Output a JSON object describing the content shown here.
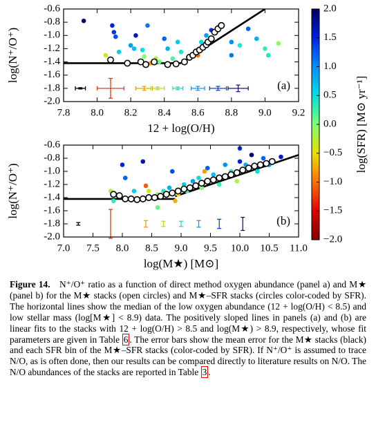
{
  "chart_data": [
    {
      "type": "scatter",
      "panel_label": "(a)",
      "x_label": "12 + log(O/H)",
      "y_label": "log(N⁺/O⁺)",
      "xlim": [
        7.8,
        9.2
      ],
      "xticks": [
        7.8,
        {
          "value": 8,
          "label": "8.0"
        },
        8.2,
        8.4,
        8.6,
        8.8,
        {
          "value": 9,
          "label": "9.0"
        },
        9.2
      ],
      "ylim": [
        -2,
        -0.6
      ],
      "yticks": [
        -0.6,
        -0.8,
        {
          "value": -1,
          "label": "-1.0"
        },
        -1.2,
        -1.4,
        -1.6,
        -1.8,
        {
          "value": -2,
          "label": "-2.0"
        }
      ],
      "stacks": {
        "x": [
          8.08,
          8.18,
          8.26,
          8.29,
          8.34,
          8.42,
          8.47,
          8.52,
          8.55,
          8.57,
          8.59,
          8.61,
          8.63,
          8.65,
          8.66,
          8.68,
          8.7,
          8.72,
          8.74
        ],
        "y": [
          -1.37,
          -1.42,
          -1.4,
          -1.44,
          -1.4,
          -1.44,
          -1.43,
          -1.4,
          -1.33,
          -1.3,
          -1.25,
          -1.22,
          -1.18,
          -1.14,
          -1.1,
          -1.05,
          -0.95,
          -0.9,
          -0.85
        ]
      },
      "sfr_stacks": {
        "x": [
          7.92,
          8.05,
          8.09,
          8.1,
          8.11,
          8.13,
          8.2,
          8.22,
          8.23,
          8.27,
          8.3,
          8.32,
          8.35,
          8.37,
          8.4,
          8.42,
          8.45,
          8.48,
          8.5,
          8.55,
          8.58,
          8.6,
          8.62,
          8.65,
          8.68,
          8.72,
          8.8,
          8.85,
          8.9,
          8.95,
          9.0,
          9.02,
          9.08,
          8.28,
          8.8
        ],
        "y": [
          -0.78,
          -1.3,
          -0.85,
          -0.95,
          -1.02,
          -1.25,
          -1.15,
          -1.2,
          -1.0,
          -1.22,
          -0.85,
          -1.42,
          -1.35,
          -1.4,
          -1.05,
          -1.2,
          -1.35,
          -1.1,
          -1.25,
          -1.35,
          -1.28,
          -1.3,
          -1.1,
          -1.0,
          -0.92,
          -0.88,
          -1.1,
          -1.15,
          -0.9,
          -1.05,
          -1.2,
          -1.3,
          -1.12,
          -1.32,
          -1.3
        ],
        "c": [
          1.9,
          -0.3,
          1.5,
          1.4,
          1.3,
          0.6,
          0.9,
          0.7,
          1.6,
          0.5,
          1.1,
          -0.8,
          -0.3,
          0.1,
          1.2,
          0.8,
          0.2,
          0.6,
          0.4,
          -0.5,
          0.3,
          -1.0,
          0.5,
          0.9,
          1.4,
          1.8,
          1.0,
          0.4,
          1.2,
          0.8,
          0.3,
          0.4,
          -0.1,
          0.0,
          1.1
        ]
      },
      "median_line": {
        "x": [
          7.8,
          8.5
        ],
        "y": [
          -1.42,
          -1.42
        ]
      },
      "fit_line": {
        "x": [
          8.5,
          9.0
        ],
        "y": [
          -1.42,
          -0.6
        ]
      },
      "error_bars": [
        {
          "x": 7.9,
          "y": -1.8,
          "xerr": 0.03,
          "yerr": 0.01,
          "color": "#000000"
        },
        {
          "x": 8.08,
          "y": -1.8,
          "xerr": 0.08,
          "yerr": 0.15,
          "color": "#e03a10"
        },
        {
          "x": 8.28,
          "y": -1.8,
          "xerr": 0.05,
          "yerr": 0.03,
          "color": "#f0a000"
        },
        {
          "x": 8.36,
          "y": -1.8,
          "xerr": 0.04,
          "yerr": 0.02,
          "color": "#b0e020"
        },
        {
          "x": 8.48,
          "y": -1.8,
          "xerr": 0.03,
          "yerr": 0.02,
          "color": "#30d8c0"
        },
        {
          "x": 8.6,
          "y": -1.8,
          "xerr": 0.04,
          "yerr": 0.03,
          "color": "#1898e8"
        },
        {
          "x": 8.72,
          "y": -1.8,
          "xerr": 0.05,
          "yerr": 0.03,
          "color": "#1040d0"
        },
        {
          "x": 8.84,
          "y": -1.8,
          "xerr": 0.06,
          "yerr": 0.05,
          "color": "#101878"
        }
      ]
    },
    {
      "type": "scatter",
      "panel_label": "(b)",
      "x_label": "log(M★) [M⊙]",
      "y_label": "log(N⁺/O⁺)",
      "xlim": [
        7,
        11
      ],
      "xticks": [
        {
          "value": 7,
          "label": "7.0"
        },
        7.5,
        {
          "value": 8,
          "label": "8.0"
        },
        8.5,
        {
          "value": 9,
          "label": "9.0"
        },
        9.5,
        {
          "value": 10,
          "label": "10.0"
        },
        10.5,
        {
          "value": 11,
          "label": "11.0"
        }
      ],
      "ylim": [
        -2,
        -0.6
      ],
      "yticks": [
        -0.6,
        -0.8,
        {
          "value": -1,
          "label": "-1.0"
        },
        -1.2,
        -1.4,
        -1.6,
        -1.8,
        {
          "value": -2,
          "label": "-2.0"
        }
      ],
      "stacks": {
        "x": [
          7.85,
          7.95,
          8.05,
          8.15,
          8.25,
          8.35,
          8.45,
          8.55,
          8.65,
          8.75,
          8.85,
          8.95,
          9.05,
          9.15,
          9.25,
          9.35,
          9.45,
          9.55,
          9.65,
          9.75,
          9.85,
          9.95,
          10.05,
          10.15,
          10.25,
          10.35,
          10.45,
          10.55
        ],
        "y": [
          -1.35,
          -1.37,
          -1.42,
          -1.42,
          -1.43,
          -1.42,
          -1.4,
          -1.4,
          -1.38,
          -1.35,
          -1.33,
          -1.3,
          -1.27,
          -1.25,
          -1.22,
          -1.18,
          -1.15,
          -1.13,
          -1.1,
          -1.08,
          -1.05,
          -1.02,
          -0.98,
          -0.95,
          -0.92,
          -0.9,
          -0.88,
          -0.85
        ]
      },
      "sfr_stacks": {
        "x": [
          7.8,
          7.85,
          8.0,
          8.05,
          8.2,
          8.35,
          8.4,
          8.45,
          8.5,
          8.6,
          8.7,
          8.8,
          8.85,
          8.95,
          9.05,
          9.1,
          9.2,
          9.3,
          9.35,
          9.45,
          9.55,
          9.65,
          9.75,
          9.85,
          9.95,
          10.0,
          10.1,
          10.2,
          10.3,
          10.4,
          10.5,
          10.7,
          10.0,
          9.4,
          8.6,
          8.9
        ],
        "y": [
          -1.3,
          -1.45,
          -0.9,
          -1.1,
          -1.3,
          -0.85,
          -1.22,
          -1.3,
          -1.4,
          -1.35,
          -1.3,
          -1.25,
          -1.0,
          -1.35,
          -1.2,
          -1.3,
          -1.15,
          -1.1,
          -1.25,
          -0.95,
          -1.05,
          -1.2,
          -0.9,
          -1.0,
          -1.15,
          -0.85,
          -0.9,
          -0.75,
          -1.0,
          -0.8,
          -0.9,
          -0.78,
          -0.65,
          -1.0,
          -1.55,
          -1.45
        ],
        "c": [
          -0.2,
          0.3,
          1.5,
          1.2,
          0.6,
          1.7,
          -1.1,
          -0.4,
          0.3,
          -0.2,
          0.4,
          0.8,
          1.3,
          -0.5,
          0.6,
          0.2,
          0.9,
          0.5,
          0.0,
          1.2,
          0.7,
          0.3,
          1.0,
          0.4,
          -0.2,
          1.5,
          0.8,
          1.9,
          0.5,
          1.2,
          0.9,
          1.6,
          1.4,
          -0.8,
          0.1,
          -0.7
        ]
      },
      "median_line": {
        "x": [
          7,
          8.9
        ],
        "y": [
          -1.42,
          -1.42
        ]
      },
      "fit_line": {
        "x": [
          8.9,
          11
        ],
        "y": [
          -1.38,
          -0.75
        ]
      },
      "error_bars": [
        {
          "x": 7.25,
          "y": -1.8,
          "yerr": 0.02,
          "color": "#000000"
        },
        {
          "x": 7.8,
          "y": -1.8,
          "yerr": 0.22,
          "color": "#e03a10"
        },
        {
          "x": 8.4,
          "y": -1.8,
          "yerr": 0.05,
          "color": "#f0a000"
        },
        {
          "x": 8.7,
          "y": -1.8,
          "yerr": 0.04,
          "color": "#b0e020"
        },
        {
          "x": 9.0,
          "y": -1.8,
          "yerr": 0.04,
          "color": "#30d8c0"
        },
        {
          "x": 9.3,
          "y": -1.8,
          "yerr": 0.05,
          "color": "#1898e8"
        },
        {
          "x": 9.65,
          "y": -1.8,
          "yerr": 0.07,
          "color": "#1040d0"
        },
        {
          "x": 10.05,
          "y": -1.8,
          "yerr": 0.1,
          "color": "#101878"
        }
      ]
    }
  ],
  "colorbar": {
    "label": "log(SFR) [M⊙ yr⁻¹]",
    "lim": [
      -2,
      2
    ],
    "ticks": [
      {
        "value": 2,
        "label": "2.0"
      },
      1.5,
      {
        "value": 1,
        "label": "1.0"
      },
      0.5,
      {
        "value": 0,
        "label": "0.0"
      },
      {
        "value": -0.5,
        "label": "−0.5"
      },
      {
        "value": -1,
        "label": "−1.0"
      },
      {
        "value": -1.5,
        "label": "−1.5"
      },
      {
        "value": -2,
        "label": "−2.0"
      }
    ],
    "colormap": [
      "#7f0000",
      "#e00000",
      "#ff7000",
      "#e8e000",
      "#80ff70",
      "#00e0e0",
      "#0090ff",
      "#0020e0",
      "#00005a"
    ]
  },
  "caption": {
    "label": "Figure 14.",
    "segments": [
      {
        "text": "N⁺/O⁺ ratio as a function of direct method oxygen abundance (panel a) and M★ (panel b) for the M★ stacks (open circles) and M★–SFR stacks (circles color-coded by SFR). The horizontal lines show the median of the low oxygen abundance (12 + log(O/H) < 8.5) and low stellar mass (log[M★] < 8.9) data. The positively sloped lines in panels (a) and (b) are linear fits to the stacks with 12 + log(O/H) > 8.5 and log(M★) > 8.9, respectively, whose fit parameters are given in Table "
      },
      {
        "ref": "6"
      },
      {
        "text": ". The error bars show the mean error for the M★ stacks (black) and each SFR bin of the M★–SFR stacks (color-coded by SFR). If N⁺/O⁺ is assumed to trace N/O, as is often done, then our results can be compared directly to literature results on N/O. The N/O abundances of the stacks are reported in Table "
      },
      {
        "ref": "3"
      },
      {
        "text": "."
      }
    ]
  }
}
